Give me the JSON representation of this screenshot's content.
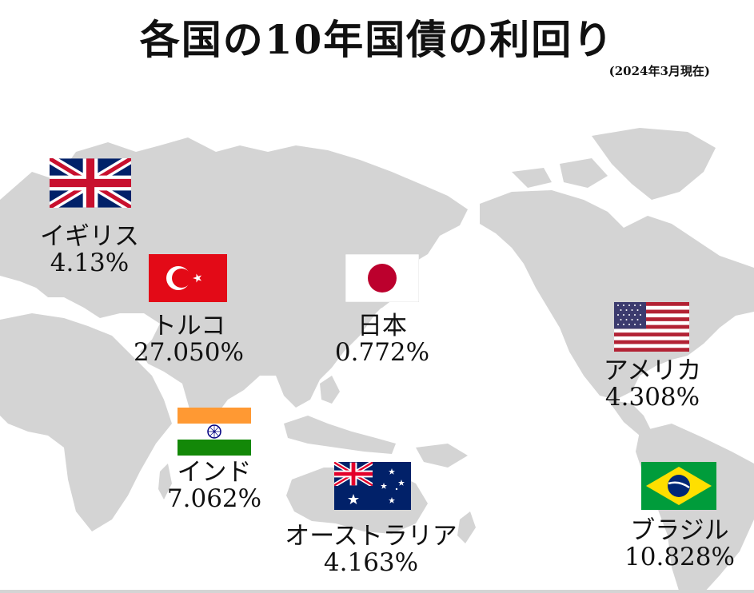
{
  "header": {
    "title": "各国の10年国債の利回り",
    "subtitle": "(2024年3月現在)"
  },
  "countries": [
    {
      "name": "イギリス",
      "yield": "4.13%",
      "flag": "uk-flag-icon"
    },
    {
      "name": "トルコ",
      "yield": "27.050%",
      "flag": "turkey-flag-icon"
    },
    {
      "name": "日本",
      "yield": "0.772%",
      "flag": "japan-flag-icon"
    },
    {
      "name": "アメリカ",
      "yield": "4.308%",
      "flag": "usa-flag-icon"
    },
    {
      "name": "インド",
      "yield": "7.062%",
      "flag": "india-flag-icon"
    },
    {
      "name": "オーストラリア",
      "yield": "4.163%",
      "flag": "australia-flag-icon"
    },
    {
      "name": "ブラジル",
      "yield": "10.828%",
      "flag": "brazil-flag-icon"
    }
  ],
  "colors": {
    "land": "#d4d4d4",
    "background": "#ffffff"
  }
}
